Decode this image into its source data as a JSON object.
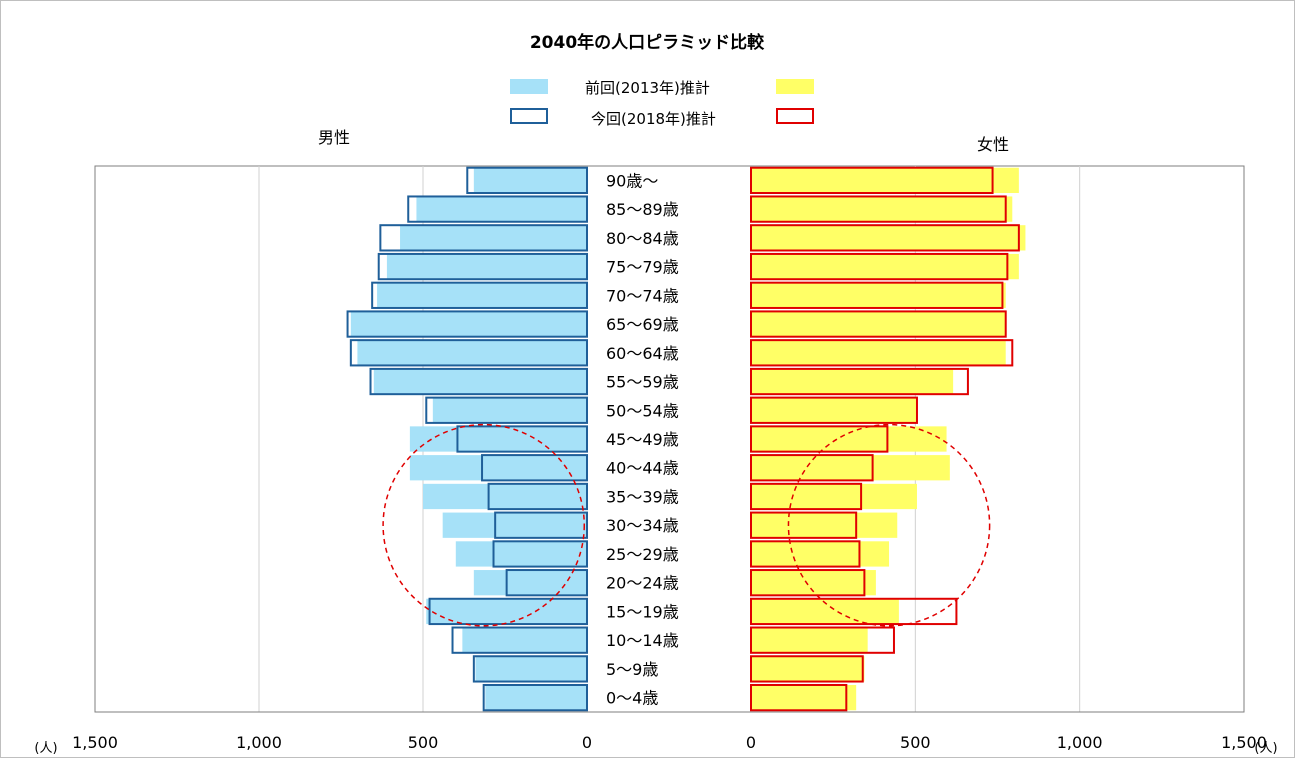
{
  "chart_data": {
    "type": "bar",
    "subtype": "population-pyramid",
    "title": "2040年の人口ピラミッド比較",
    "left_side_label": "男性",
    "right_side_label": "女性",
    "unit_label": "(人)",
    "xlim": [
      0,
      1500
    ],
    "x_ticks": [
      "0",
      "500",
      "1,000",
      "1,500"
    ],
    "grid": "vertical",
    "legend_placement": "top-center",
    "legend": [
      {
        "label": "前回(2013年)推計",
        "style": "filled",
        "male_color": "#a6e1f8",
        "female_color": "#ffff66"
      },
      {
        "label": "今回(2018年)推計",
        "style": "outline",
        "male_color": "#1f5f99",
        "female_color": "#e00000"
      }
    ],
    "categories": [
      "90歳～",
      "85～89歳",
      "80～84歳",
      "75～79歳",
      "70～74歳",
      "65～69歳",
      "60～64歳",
      "55～59歳",
      "50～54歳",
      "45～49歳",
      "40～44歳",
      "35～39歳",
      "30～34歳",
      "25～29歳",
      "20～24歳",
      "15～19歳",
      "10～14歳",
      "5～9歳",
      "0～4歳"
    ],
    "series": [
      {
        "name": "前回(2013年)推計",
        "side": "male",
        "values": [
          345,
          520,
          570,
          610,
          640,
          720,
          700,
          650,
          470,
          540,
          540,
          500,
          440,
          400,
          345,
          490,
          380,
          340,
          310
        ]
      },
      {
        "name": "今回(2018年)推計",
        "side": "male",
        "values": [
          365,
          545,
          630,
          635,
          655,
          730,
          720,
          660,
          490,
          395,
          320,
          300,
          280,
          285,
          245,
          480,
          410,
          345,
          315
        ]
      },
      {
        "name": "前回(2013年)推計",
        "side": "female",
        "values": [
          815,
          795,
          835,
          815,
          775,
          775,
          775,
          615,
          505,
          595,
          605,
          505,
          445,
          420,
          380,
          450,
          355,
          345,
          320
        ]
      },
      {
        "name": "今回(2018年)推計",
        "side": "female",
        "values": [
          735,
          775,
          815,
          780,
          765,
          775,
          795,
          660,
          505,
          415,
          370,
          335,
          320,
          330,
          345,
          625,
          435,
          340,
          290
        ]
      }
    ],
    "annotations": [
      {
        "shape": "dashed-circle",
        "side": "male",
        "rows": [
          "35～39歳",
          "30～34歳",
          "25～29歳"
        ],
        "color": "#e00000"
      },
      {
        "shape": "dashed-circle",
        "side": "female",
        "rows": [
          "35～39歳",
          "30～34歳",
          "25～29歳"
        ],
        "color": "#e00000"
      }
    ]
  }
}
